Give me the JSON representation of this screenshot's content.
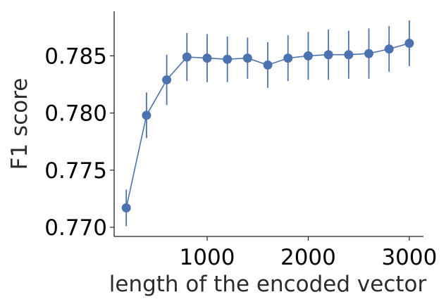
{
  "chart_data": {
    "type": "line",
    "title": "",
    "xlabel": "length of the encoded vector",
    "ylabel": "F1 score",
    "xlim": [
      80,
      3140
    ],
    "ylim": [
      0.7692,
      0.7889
    ],
    "xticks": [
      1000,
      2000,
      3000
    ],
    "yticks": [
      0.77,
      0.775,
      0.78,
      0.785
    ],
    "yticklabels": [
      "0.770",
      "0.775",
      "0.780",
      "0.785"
    ],
    "grid": false,
    "colors": {
      "series": "#4c72b0",
      "axis": "#222222"
    },
    "series": [
      {
        "x": [
          200,
          400,
          600,
          800,
          1000,
          1200,
          1400,
          1600,
          1800,
          2000,
          2200,
          2400,
          2600,
          2800,
          3000
        ],
        "y": [
          0.7717,
          0.7798,
          0.7829,
          0.7849,
          0.7848,
          0.7847,
          0.7848,
          0.7842,
          0.7848,
          0.785,
          0.7851,
          0.7851,
          0.7852,
          0.7856,
          0.7861
        ],
        "err": [
          0.0016,
          0.002,
          0.0022,
          0.0021,
          0.0021,
          0.002,
          0.0018,
          0.002,
          0.002,
          0.0021,
          0.0022,
          0.0021,
          0.0022,
          0.002,
          0.002
        ]
      }
    ]
  }
}
